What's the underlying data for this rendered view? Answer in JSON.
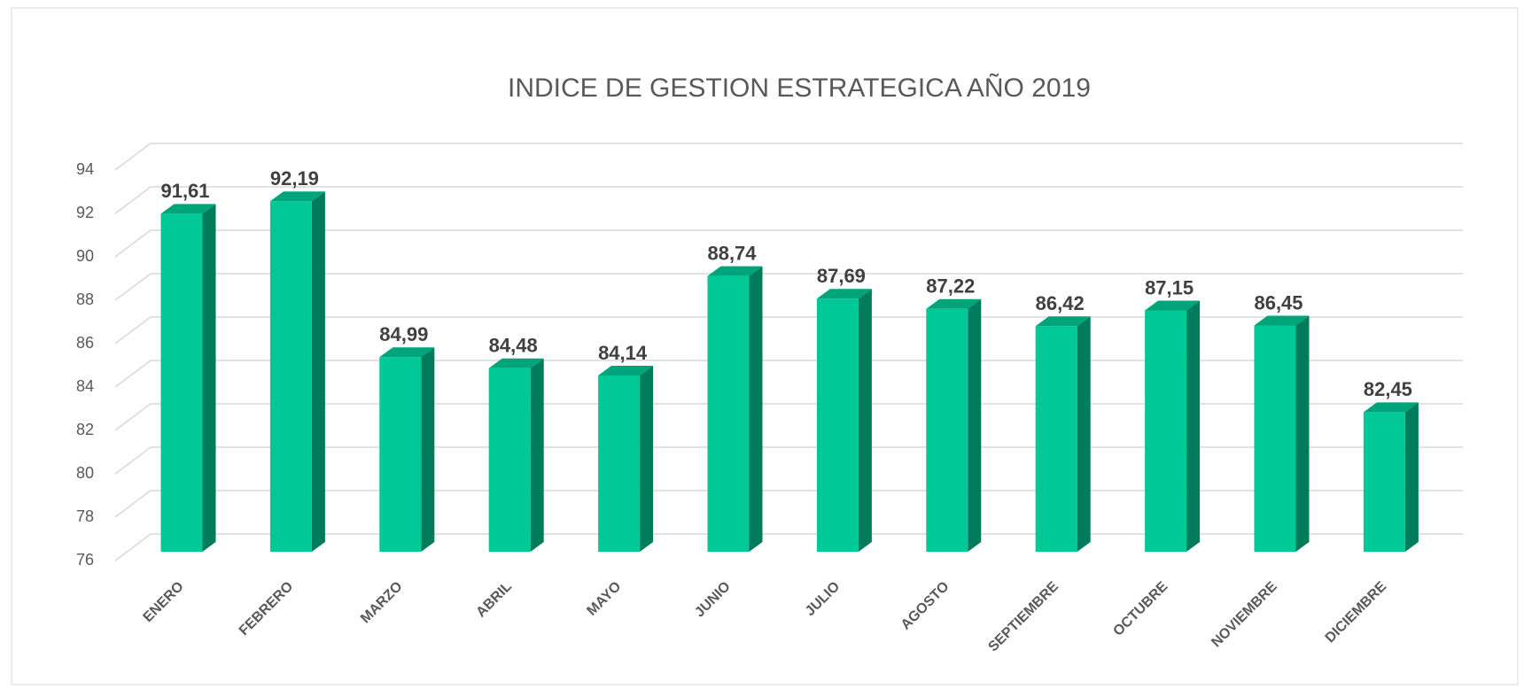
{
  "chart_data": {
    "type": "bar3d",
    "title": "INDICE DE GESTION ESTRATEGICA  AÑO 2019",
    "categories": [
      "ENERO",
      "FEBRERO",
      "MARZO",
      "ABRIL",
      "MAYO",
      "JUNIO",
      "JULIO",
      "AGOSTO",
      "SEPTIEMBRE",
      "OCTUBRE",
      "NOVIEMBRE",
      "DICIEMBRE"
    ],
    "values": [
      91.61,
      92.19,
      84.99,
      84.48,
      84.14,
      88.74,
      87.69,
      87.22,
      86.42,
      87.15,
      86.45,
      82.45
    ],
    "value_labels": [
      "91,61",
      "92,19",
      "84,99",
      "84,48",
      "84,14",
      "88,74",
      "87,69",
      "87,22",
      "86,42",
      "87,15",
      "86,45",
      "82,45"
    ],
    "color": "#00c896",
    "ylim": [
      76,
      94
    ],
    "yticks": [
      76,
      78,
      80,
      82,
      84,
      86,
      88,
      90,
      92,
      94
    ],
    "grid": true
  }
}
